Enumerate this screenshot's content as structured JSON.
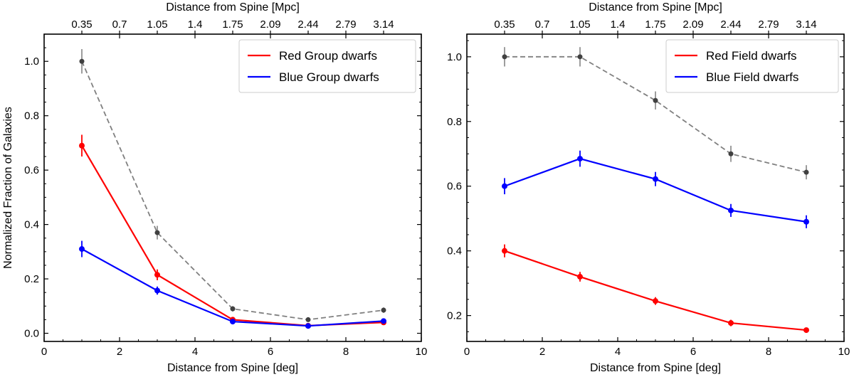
{
  "chart_data": [
    {
      "type": "line",
      "xlabel": "Distance from Spine [deg]",
      "ylabel": "Normalized Fraction of Galaxies",
      "top_xlabel": "Distance from Spine [Mpc]",
      "xlim": [
        0,
        10
      ],
      "ylim": [
        -0.03,
        1.1
      ],
      "xticks": [
        0,
        2,
        4,
        6,
        8,
        10
      ],
      "yticks": [
        0.0,
        0.2,
        0.4,
        0.6,
        0.8,
        1.0
      ],
      "ytick_labels": [
        "0.0",
        "0.2",
        "0.4",
        "0.6",
        "0.8",
        "1.0"
      ],
      "top_ticks": [
        1,
        2,
        3,
        4,
        5,
        6,
        7,
        8,
        9
      ],
      "top_tick_labels": [
        "0.35",
        "0.7",
        "1.05",
        "1.4",
        "1.75",
        "2.09",
        "2.44",
        "2.79",
        "3.14"
      ],
      "grid": false,
      "legend_position": "top-right",
      "x": [
        1,
        3,
        5,
        7,
        9
      ],
      "series": [
        {
          "name": "",
          "color": "#808080",
          "dashed": true,
          "values": [
            1.0,
            0.37,
            0.09,
            0.05,
            0.085
          ],
          "errors": [
            0.045,
            0.025,
            0.01,
            0.008,
            0.01
          ]
        },
        {
          "name": "Red Group dwarfs",
          "color": "#ff0000",
          "dashed": false,
          "values": [
            0.69,
            0.215,
            0.05,
            0.028,
            0.04
          ],
          "errors": [
            0.04,
            0.02,
            0.008,
            0.006,
            0.008
          ]
        },
        {
          "name": "Blue Group dwarfs",
          "color": "#0000ff",
          "dashed": false,
          "values": [
            0.31,
            0.157,
            0.043,
            0.027,
            0.045
          ],
          "errors": [
            0.03,
            0.015,
            0.007,
            0.006,
            0.008
          ]
        }
      ]
    },
    {
      "type": "line",
      "xlabel": "Distance from Spine [deg]",
      "ylabel": "",
      "top_xlabel": "Distance from Spine [Mpc]",
      "xlim": [
        0,
        10
      ],
      "ylim": [
        0.12,
        1.07
      ],
      "xticks": [
        0,
        2,
        4,
        6,
        8,
        10
      ],
      "yticks": [
        0.2,
        0.4,
        0.6,
        0.8,
        1.0
      ],
      "ytick_labels": [
        "0.2",
        "0.4",
        "0.6",
        "0.8",
        "1.0"
      ],
      "top_ticks": [
        1,
        2,
        3,
        4,
        5,
        6,
        7,
        8,
        9
      ],
      "top_tick_labels": [
        "0.35",
        "0.7",
        "1.05",
        "1.4",
        "1.75",
        "2.09",
        "2.44",
        "2.79",
        "3.14"
      ],
      "grid": false,
      "legend_position": "top-right",
      "x": [
        1,
        3,
        5,
        7,
        9
      ],
      "series": [
        {
          "name": "",
          "color": "#808080",
          "dashed": true,
          "values": [
            1.0,
            1.0,
            0.865,
            0.7,
            0.643
          ],
          "errors": [
            0.03,
            0.03,
            0.028,
            0.025,
            0.022
          ]
        },
        {
          "name": "Blue Field dwarfs",
          "color": "#0000ff",
          "dashed": false,
          "values": [
            0.6,
            0.685,
            0.622,
            0.525,
            0.49
          ],
          "errors": [
            0.025,
            0.025,
            0.022,
            0.02,
            0.02
          ]
        },
        {
          "name": "Red Field dwarfs",
          "color": "#ff0000",
          "dashed": false,
          "values": [
            0.4,
            0.32,
            0.245,
            0.177,
            0.155
          ],
          "errors": [
            0.02,
            0.015,
            0.012,
            0.01,
            0.008
          ]
        }
      ],
      "legend_order": [
        "Red Field dwarfs",
        "Blue Field dwarfs"
      ]
    }
  ]
}
